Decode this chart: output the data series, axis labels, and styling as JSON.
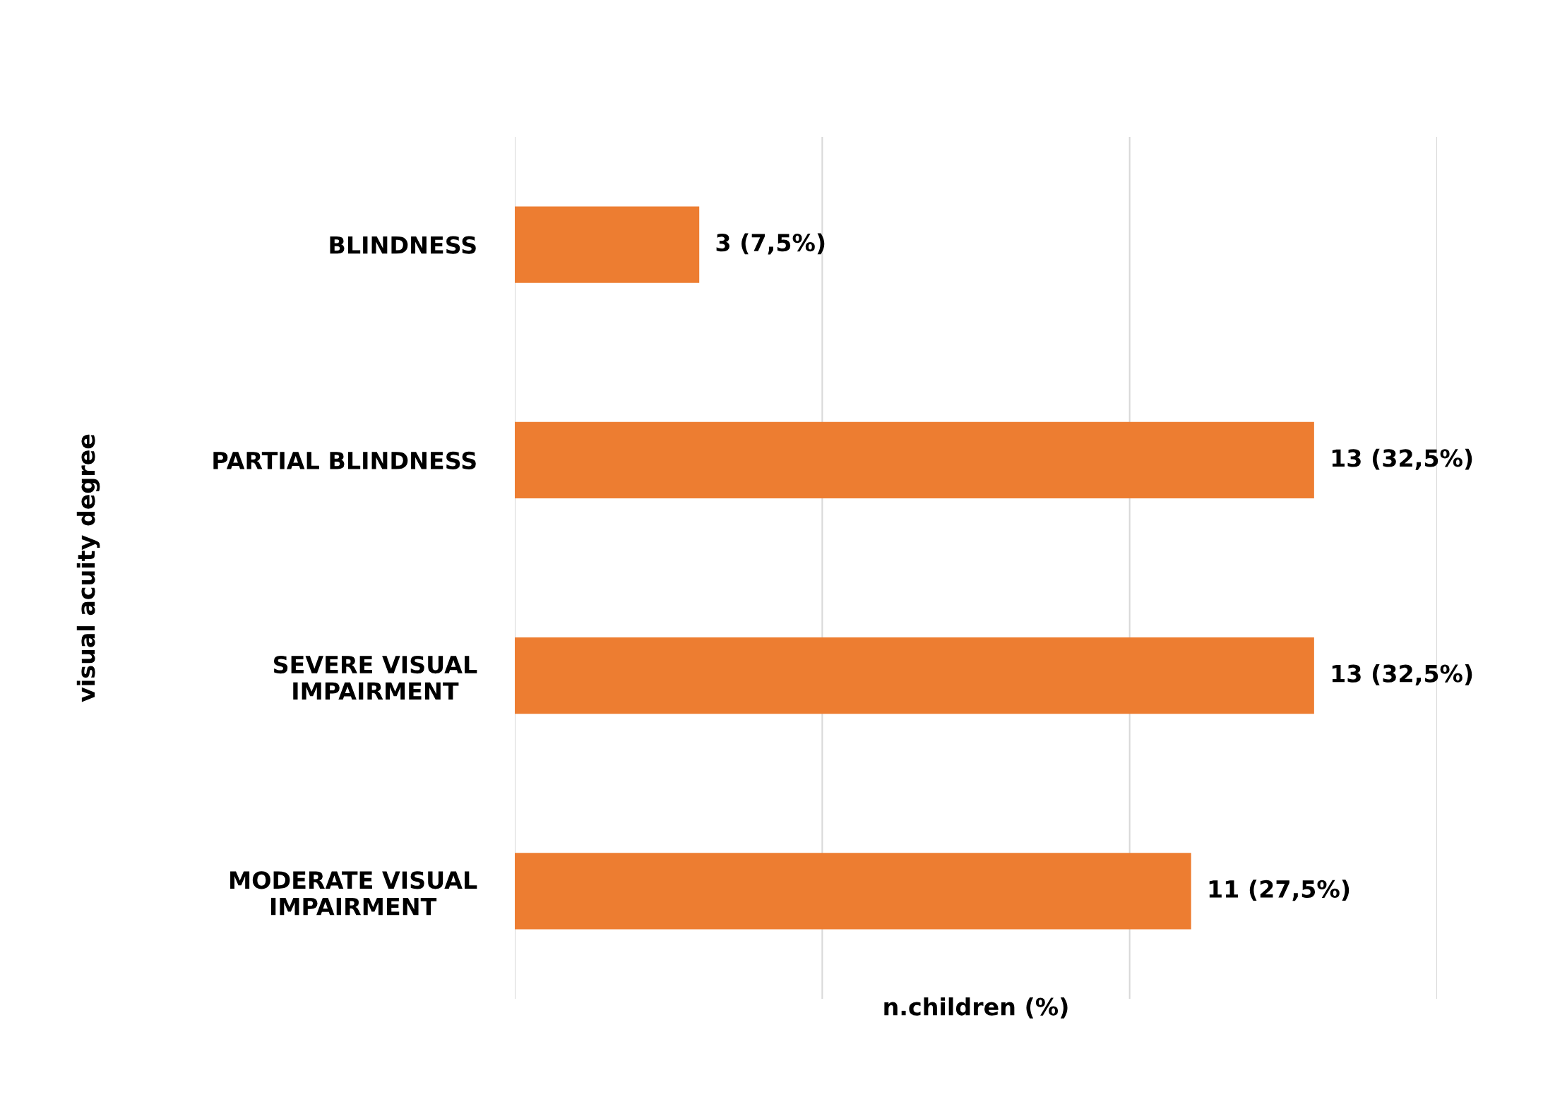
{
  "chart_data": {
    "type": "bar",
    "orientation": "horizontal",
    "categories": [
      "BLINDNESS",
      "PARTIAL BLINDNESS",
      "SEVERE VISUAL\nIMPAIRMENT",
      "MODERATE VISUAL\nIMPAIRMENT"
    ],
    "values": [
      3,
      13,
      13,
      11
    ],
    "value_labels": [
      "3 (7,5%)",
      "13 (32,5%)",
      "13 (32,5%)",
      "11 (27,5%)"
    ],
    "color": "#ed7d31",
    "xlim": [
      0,
      15
    ],
    "xticks": [
      {
        "value": 0,
        "label": null
      },
      {
        "value": 5,
        "label": null
      },
      {
        "value": 10,
        "label": null
      },
      {
        "value": 15,
        "label": null
      }
    ],
    "grid": "x",
    "xlabel": "n.children (%)",
    "ylabel": "visual acuity degree"
  }
}
